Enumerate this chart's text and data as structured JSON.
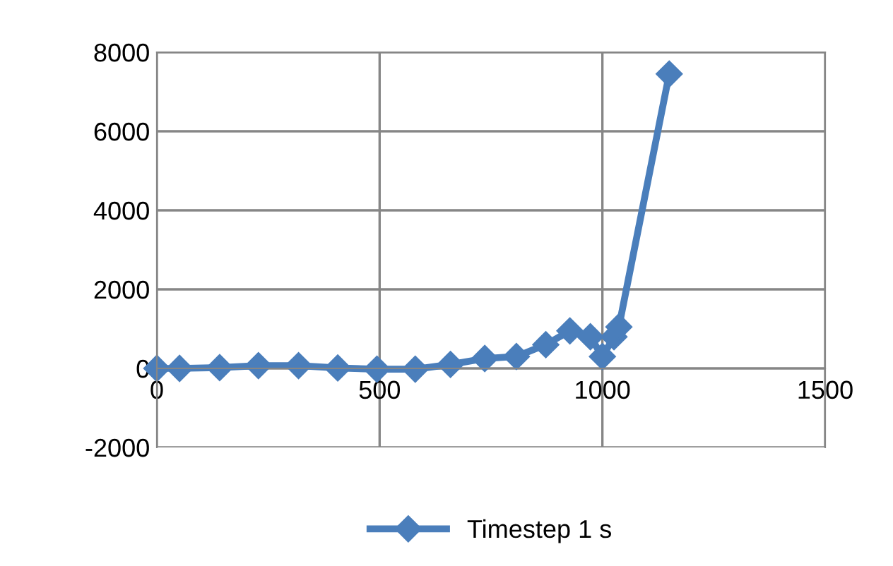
{
  "chart_data": {
    "type": "line",
    "x": [
      0,
      51,
      141,
      228,
      318,
      406,
      494,
      580,
      659,
      736,
      807,
      873,
      927,
      973,
      1000,
      1026,
      1037,
      1150
    ],
    "series": [
      {
        "name": "Timestep 1 s",
        "color": "#4a7ebb",
        "values": [
          0,
          0,
          20,
          70,
          70,
          10,
          -20,
          -20,
          100,
          250,
          300,
          600,
          950,
          800,
          300,
          800,
          1050,
          7450
        ]
      }
    ],
    "xlim": [
      0,
      1500
    ],
    "xticks": [
      0,
      500,
      1000,
      1500
    ],
    "ylim": [
      -2000,
      8000
    ],
    "yticks": [
      -2000,
      0,
      2000,
      4000,
      6000,
      8000
    ],
    "grid": true,
    "legend": "bottom",
    "marker": "diamond",
    "line_style": "solid"
  }
}
